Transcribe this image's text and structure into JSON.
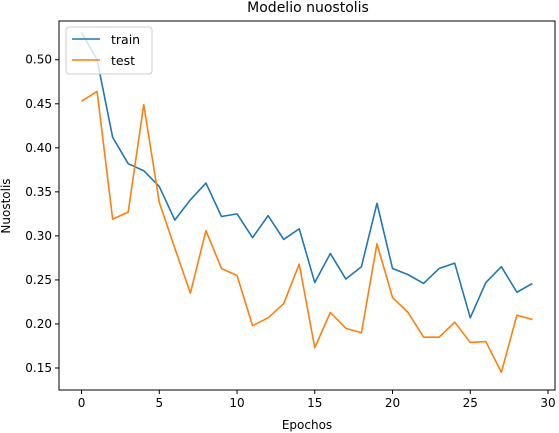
{
  "chart_data": {
    "type": "line",
    "title": "Modelio nuostolis",
    "xlabel": "Epochos",
    "ylabel": "Nuostolis",
    "xlim": [
      -1.45,
      30.45
    ],
    "ylim": [
      0.125,
      0.544
    ],
    "xticks": [
      0,
      5,
      10,
      15,
      20,
      25,
      30
    ],
    "yticks": [
      0.15,
      0.2,
      0.25,
      0.3,
      0.35,
      0.4,
      0.45,
      0.5
    ],
    "legend_position": "top-left",
    "grid": false,
    "x": [
      0,
      1,
      2,
      3,
      4,
      5,
      6,
      7,
      8,
      9,
      10,
      11,
      12,
      13,
      14,
      15,
      16,
      17,
      18,
      19,
      20,
      21,
      22,
      23,
      24,
      25,
      26,
      27,
      28,
      29
    ],
    "series": [
      {
        "name": "train",
        "color": "#1f77b4",
        "values": [
          0.531,
          0.5,
          0.412,
          0.382,
          0.374,
          0.356,
          0.318,
          0.341,
          0.36,
          0.322,
          0.325,
          0.298,
          0.323,
          0.296,
          0.308,
          0.247,
          0.28,
          0.251,
          0.265,
          0.337,
          0.263,
          0.256,
          0.246,
          0.263,
          0.269,
          0.207,
          0.247,
          0.265,
          0.236,
          0.246
        ]
      },
      {
        "name": "test",
        "color": "#ff7f0e",
        "values": [
          0.453,
          0.464,
          0.319,
          0.327,
          0.449,
          0.338,
          0.286,
          0.235,
          0.306,
          0.263,
          0.255,
          0.198,
          0.207,
          0.223,
          0.268,
          0.173,
          0.213,
          0.195,
          0.19,
          0.291,
          0.23,
          0.213,
          0.185,
          0.185,
          0.202,
          0.179,
          0.18,
          0.145,
          0.21,
          0.205
        ]
      }
    ]
  }
}
